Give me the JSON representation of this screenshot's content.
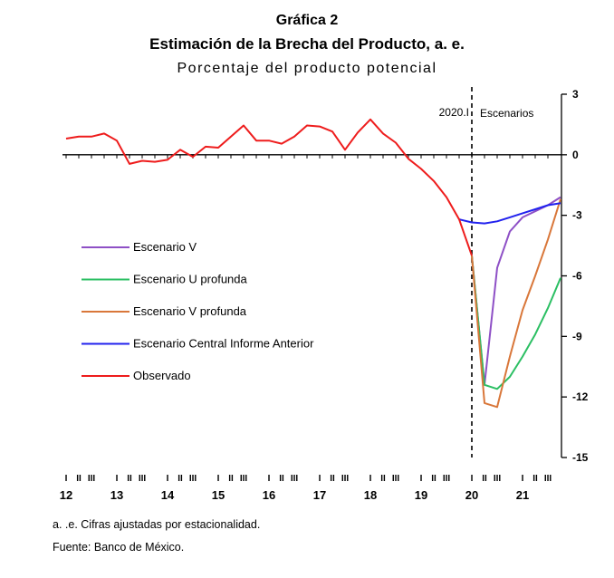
{
  "header": {
    "label": "Gráfica 2",
    "title": "Estimación de la Brecha del Producto, a. e.",
    "subtitle": "Porcentaje del producto potencial"
  },
  "footnotes": {
    "note1": "a. .e. Cifras ajustadas por estacionalidad.",
    "note2": "Fuente: Banco de México."
  },
  "chart_data": {
    "type": "line",
    "ylim": [
      -15,
      3
    ],
    "y_ticks": [
      3,
      0,
      -3,
      -6,
      -9,
      -12,
      -15
    ],
    "y_axis_side": "right",
    "grid": false,
    "legend_position": "left-middle",
    "x_quarter_labels": [
      "I",
      "II",
      "III",
      "I",
      "II",
      "III",
      "I",
      "II",
      "III",
      "I",
      "II",
      "III",
      "I",
      "II",
      "III",
      "I",
      "II",
      "III",
      "I",
      "II",
      "III",
      "I",
      "II",
      "III",
      "I",
      "II",
      "III",
      "I",
      "II",
      "III"
    ],
    "x_year_labels": [
      "12",
      "13",
      "14",
      "15",
      "16",
      "17",
      "18",
      "19",
      "20",
      "21"
    ],
    "annotations": {
      "vline_label": "2020.I",
      "vline_at": "2020.I",
      "scenario_label": "Escenarios"
    },
    "series": [
      {
        "name": "Escenario V",
        "color": "#8e50c6",
        "points": [
          [
            "2020.I",
            -5.0
          ],
          [
            "2020.II",
            -11.4
          ],
          [
            "2020.III",
            -5.6
          ],
          [
            "2020.IV",
            -3.8
          ],
          [
            "2021.I",
            -3.1
          ],
          [
            "2021.II",
            -2.8
          ],
          [
            "2021.III",
            -2.5
          ],
          [
            "2021.IV",
            -2.1
          ]
        ]
      },
      {
        "name": "Escenario U profunda",
        "color": "#2bbf63",
        "points": [
          [
            "2020.I",
            -5.0
          ],
          [
            "2020.II",
            -11.4
          ],
          [
            "2020.III",
            -11.6
          ],
          [
            "2020.IV",
            -11.0
          ],
          [
            "2021.I",
            -10.0
          ],
          [
            "2021.II",
            -8.9
          ],
          [
            "2021.III",
            -7.6
          ],
          [
            "2021.IV",
            -6.1
          ]
        ]
      },
      {
        "name": "Escenario V profunda",
        "color": "#d9773a",
        "points": [
          [
            "2020.I",
            -5.0
          ],
          [
            "2020.II",
            -12.3
          ],
          [
            "2020.III",
            -12.5
          ],
          [
            "2020.IV",
            -10.0
          ],
          [
            "2021.I",
            -7.7
          ],
          [
            "2021.II",
            -6.0
          ],
          [
            "2021.III",
            -4.2
          ],
          [
            "2021.IV",
            -2.2
          ]
        ]
      },
      {
        "name": "Escenario Central Informe Anterior",
        "color": "#2222ee",
        "points": [
          [
            "2019.IV",
            -3.2
          ],
          [
            "2020.I",
            -3.35
          ],
          [
            "2020.II",
            -3.4
          ],
          [
            "2020.III",
            -3.3
          ],
          [
            "2020.IV",
            -3.1
          ],
          [
            "2021.I",
            -2.9
          ],
          [
            "2021.II",
            -2.7
          ],
          [
            "2021.III",
            -2.5
          ],
          [
            "2021.IV",
            -2.4
          ]
        ]
      },
      {
        "name": "Observado",
        "color": "#ee1c1c",
        "points": [
          [
            "2012.I",
            0.8
          ],
          [
            "2012.II",
            0.9
          ],
          [
            "2012.III",
            0.9
          ],
          [
            "2012.IV",
            1.05
          ],
          [
            "2013.I",
            0.7
          ],
          [
            "2013.II",
            -0.45
          ],
          [
            "2013.III",
            -0.3
          ],
          [
            "2013.IV",
            -0.35
          ],
          [
            "2014.I",
            -0.25
          ],
          [
            "2014.II",
            0.25
          ],
          [
            "2014.III",
            -0.1
          ],
          [
            "2014.IV",
            0.4
          ],
          [
            "2015.I",
            0.35
          ],
          [
            "2015.II",
            0.9
          ],
          [
            "2015.III",
            1.45
          ],
          [
            "2015.IV",
            0.7
          ],
          [
            "2016.I",
            0.7
          ],
          [
            "2016.II",
            0.55
          ],
          [
            "2016.III",
            0.9
          ],
          [
            "2016.IV",
            1.45
          ],
          [
            "2017.I",
            1.4
          ],
          [
            "2017.II",
            1.15
          ],
          [
            "2017.III",
            0.25
          ],
          [
            "2017.IV",
            1.1
          ],
          [
            "2018.I",
            1.75
          ],
          [
            "2018.II",
            1.05
          ],
          [
            "2018.III",
            0.6
          ],
          [
            "2018.IV",
            -0.2
          ],
          [
            "2019.I",
            -0.7
          ],
          [
            "2019.II",
            -1.3
          ],
          [
            "2019.III",
            -2.1
          ],
          [
            "2019.IV",
            -3.2
          ],
          [
            "2020.I",
            -5.0
          ]
        ]
      }
    ]
  }
}
